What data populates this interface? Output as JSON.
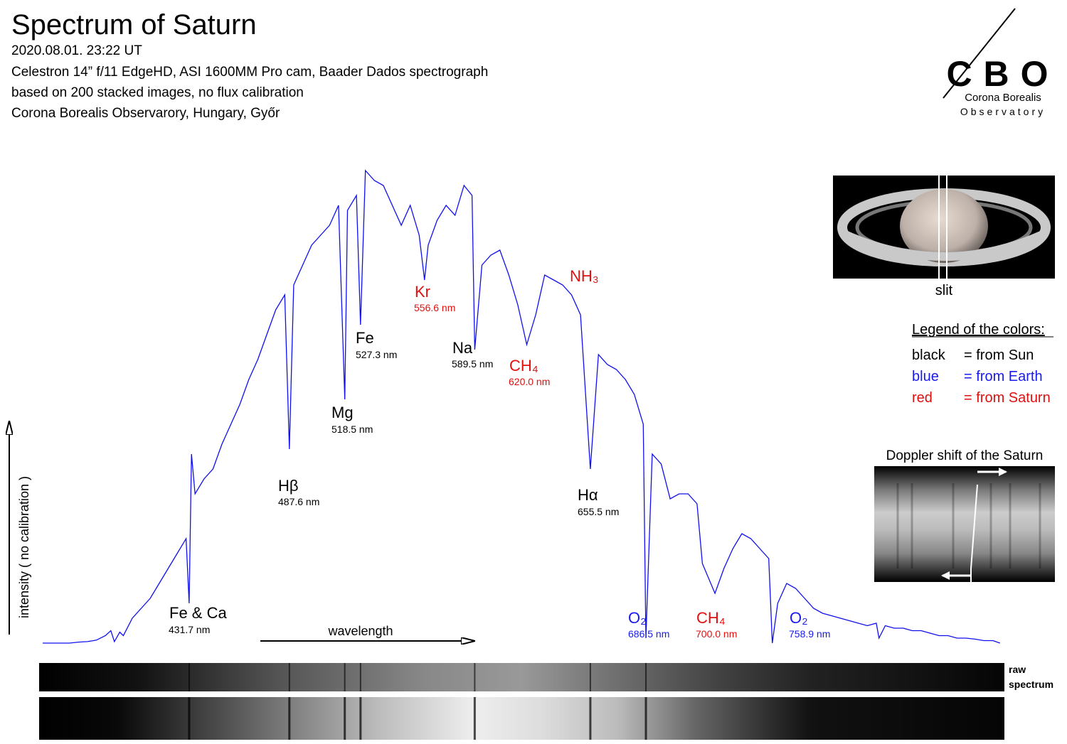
{
  "header": {
    "title": "Spectrum of Saturn",
    "lines": [
      "2020.08.01.  23:22 UT",
      "Celestron 14” f/11 EdgeHD, ASI 1600MM Pro cam, Baader Dados spectrograph",
      "based on 200 stacked images, no flux calibration",
      "Corona Borealis Observarory, Hungary, Győr"
    ]
  },
  "logo": {
    "mark": "CBO",
    "name": "Corona Borealis",
    "subtitle": "Observatory"
  },
  "chart_data": {
    "type": "line",
    "ylabel": "intensity ( no calibration )",
    "xlabel": "wavelength",
    "xlim": [
      348,
      886
    ],
    "ylim": [
      0,
      100
    ],
    "x": [
      350,
      355,
      360,
      365,
      370,
      375,
      380,
      385,
      388,
      390,
      393,
      395,
      400,
      405,
      410,
      415,
      420,
      425,
      430,
      431.7,
      433,
      435,
      440,
      445,
      450,
      455,
      460,
      465,
      470,
      475,
      480,
      485,
      487.6,
      490,
      495,
      500,
      505,
      510,
      515,
      518.5,
      520,
      525,
      527.3,
      530,
      535,
      540,
      545,
      550,
      555,
      560,
      563,
      565,
      570,
      575,
      580,
      585,
      589.5,
      591,
      595,
      600,
      605,
      610,
      615,
      620,
      625,
      630,
      635,
      640,
      645,
      650,
      655.5,
      660,
      665,
      670,
      675,
      680,
      685,
      686.5,
      690,
      695,
      700,
      705,
      710,
      715,
      718,
      725,
      730,
      735,
      740,
      745,
      750,
      755,
      757,
      760,
      765,
      770,
      775,
      780,
      785,
      790,
      795,
      800,
      805,
      810,
      815,
      816.5,
      820,
      825,
      830,
      835,
      840,
      845,
      850,
      855,
      860,
      865,
      870,
      875,
      880,
      884
    ],
    "series": [
      {
        "color": "#1010ee",
        "values": [
          0,
          0,
          0,
          0,
          0.2,
          0.3,
          0.6,
          1.5,
          2.5,
          0.3,
          2.2,
          1.5,
          5,
          7,
          9,
          12,
          15,
          18,
          21,
          8,
          38,
          30,
          33,
          35,
          40,
          44,
          48,
          53,
          57,
          62,
          67,
          70,
          39,
          72,
          76,
          80,
          82,
          84,
          88,
          49,
          87,
          90,
          64,
          95,
          93,
          92,
          88,
          84,
          88,
          82,
          73,
          80,
          85,
          88,
          86,
          92,
          90,
          59,
          76,
          78,
          79,
          74,
          68,
          60,
          66,
          74,
          73,
          72,
          70,
          66,
          35,
          58,
          56,
          55,
          53,
          50,
          44,
          1,
          38,
          36,
          29,
          30,
          30,
          28,
          16,
          10,
          15,
          19,
          22,
          21,
          19,
          17,
          0,
          8,
          12,
          11,
          9,
          7,
          6,
          5.5,
          5,
          4.5,
          4,
          3.5,
          4,
          1,
          3.5,
          3,
          3,
          2.5,
          2.5,
          2,
          1.5,
          1.5,
          1,
          1,
          0.8,
          0.5,
          0.5,
          0
        ]
      }
    ],
    "annotations": [
      {
        "name": "Fe & Ca",
        "label": "431.7 nm",
        "color": "#000000"
      },
      {
        "name": "Hβ",
        "label": "487.6 nm",
        "color": "#000000"
      },
      {
        "name": "Mg",
        "label": "518.5 nm",
        "color": "#000000"
      },
      {
        "name": "Fe",
        "label": "527.3 nm",
        "color": "#000000"
      },
      {
        "name": "Kr",
        "label": "556.6 nm",
        "color": "#e01010"
      },
      {
        "name": "Na",
        "label": "589.5 nm",
        "color": "#000000"
      },
      {
        "name": "CH₄",
        "label": "620.0 nm",
        "color": "#e01010"
      },
      {
        "name": "NH₃",
        "color": "#e01010"
      },
      {
        "name": "Hα",
        "label": "655.5 nm",
        "color": "#000000"
      },
      {
        "name": "O₂",
        "label": "686.5 nm",
        "color": "#1a1aee"
      },
      {
        "name": "CH₄",
        "label": "700.0 nm",
        "color": "#e01010"
      },
      {
        "name": "O₂",
        "label": "758.9 nm",
        "color": "#1a1aee"
      }
    ]
  },
  "insets": {
    "slit": "slit",
    "doppler": "Doppler shift of the Saturn",
    "raw": [
      "raw",
      "spectrum"
    ]
  },
  "legend": {
    "title": "Legend of the colors:",
    "entries": [
      {
        "key": "black",
        "text": "= from Sun",
        "color": "#000000"
      },
      {
        "key": "blue",
        "text": "= from Earth",
        "color": "#1a1aee"
      },
      {
        "key": "red",
        "text": "= from Saturn",
        "color": "#e01010"
      }
    ]
  }
}
